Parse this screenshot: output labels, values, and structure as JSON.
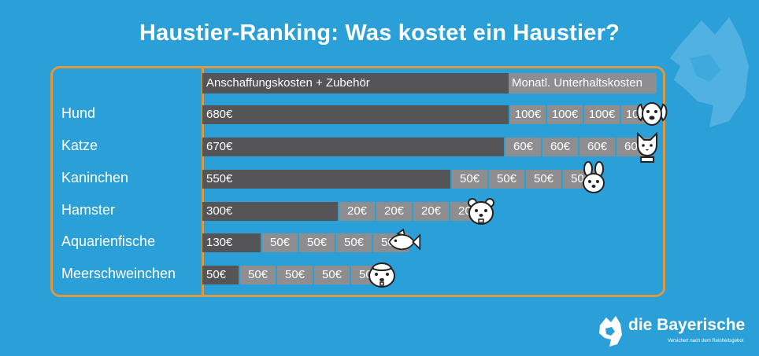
{
  "title": "Haustier-Ranking: Was kostet ein Haustier?",
  "colors": {
    "background": "#2a9fd8",
    "frame": "#d89a44",
    "purchase_bar": "#555457",
    "monthly_bar": "#8e8e90"
  },
  "chart_data": {
    "type": "bar",
    "orientation": "horizontal",
    "stacked": true,
    "title": "Haustier-Ranking: Was kostet ein Haustier?",
    "legend": [
      {
        "name": "Anschaffungskosten + Zubehör",
        "color": "#555457"
      },
      {
        "name": "Monatl. Unterhaltskosten",
        "color": "#8e8e90"
      }
    ],
    "categories": [
      "Hund",
      "Katze",
      "Kaninchen",
      "Hamster",
      "Aquarienfische",
      "Meerschweinchen"
    ],
    "series": [
      {
        "name": "Anschaffungskosten + Zubehör",
        "values": [
          680,
          670,
          550,
          300,
          130,
          50
        ],
        "labels": [
          "680€",
          "670€",
          "550€",
          "300€",
          "130€",
          "50€"
        ]
      },
      {
        "name": "Monatl. Unterhaltskosten",
        "values": [
          100,
          60,
          50,
          20,
          50,
          50
        ],
        "labels": [
          "100€",
          "60€",
          "50€",
          "20€",
          "50€",
          "50€"
        ]
      }
    ],
    "icons": [
      "dog-icon",
      "cat-icon",
      "rabbit-icon",
      "hamster-icon",
      "fish-icon",
      "guinea-pig-icon"
    ]
  },
  "logo": {
    "name": "die Bayerische",
    "tagline": "Versichert nach dem Reinheitsgebot"
  }
}
